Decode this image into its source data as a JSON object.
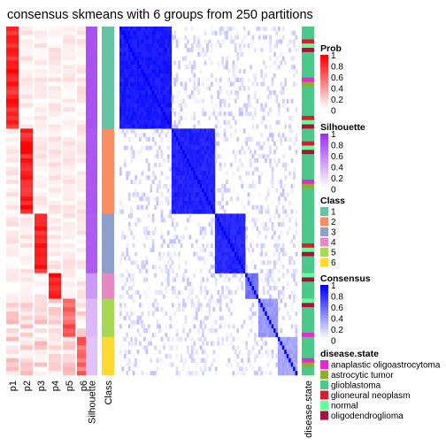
{
  "title": "consensus skmeans with 6 groups from 250 partitions",
  "chart_data": {
    "type": "heatmap",
    "columns": [
      "p1",
      "p2",
      "p3",
      "p4",
      "p5",
      "p6",
      "Silhouette",
      "Class"
    ],
    "consensus_label": "",
    "side_annotation_label": "disease.state",
    "legends": {
      "prob": {
        "title": "Prob",
        "ticks": [
          "1",
          "0.8",
          "0.6",
          "0.4",
          "0.2",
          "0"
        ],
        "low": "#ffffff",
        "high": "#ff0000"
      },
      "silhouette": {
        "title": "Silhouette",
        "ticks": [
          "1",
          "0.8",
          "0.6",
          "0.4",
          "0.2",
          "0"
        ],
        "low": "#ffffff",
        "high": "#9a32f0"
      },
      "class": {
        "title": "Class",
        "items": [
          {
            "label": "1",
            "color": "#66C2A5"
          },
          {
            "label": "2",
            "color": "#FC8D62"
          },
          {
            "label": "3",
            "color": "#8DA0CB"
          },
          {
            "label": "4",
            "color": "#E78AC3"
          },
          {
            "label": "5",
            "color": "#A6D854"
          },
          {
            "label": "6",
            "color": "#FFD92F"
          }
        ]
      },
      "consensus": {
        "title": "Consensus",
        "ticks": [
          "1",
          "0.8",
          "0.6",
          "0.4",
          "0.2",
          "0"
        ],
        "low": "#ffffff",
        "high": "#0000ff"
      },
      "disease": {
        "title": "disease.state",
        "items": [
          {
            "label": "anaplastic oligoastrocytoma",
            "color": "#E32BCF"
          },
          {
            "label": "astrocytic tumor",
            "color": "#8DAD2B"
          },
          {
            "label": "glioblastoma",
            "color": "#4BC88A"
          },
          {
            "label": "glioneural neoplasm",
            "color": "#D61F2E"
          },
          {
            "label": "normal",
            "color": "#64FF99"
          },
          {
            "label": "oligodendroglioma",
            "color": "#A3133A"
          }
        ]
      }
    },
    "groups": [
      {
        "class": 1,
        "n": 24,
        "silhouette": 0.85
      },
      {
        "class": 2,
        "n": 20,
        "silhouette": 0.82
      },
      {
        "class": 3,
        "n": 14,
        "silhouette": 0.8
      },
      {
        "class": 4,
        "n": 6,
        "silhouette": 0.5
      },
      {
        "class": 5,
        "n": 9,
        "silhouette": 0.35
      },
      {
        "class": 6,
        "n": 9,
        "silhouette": 0.3
      }
    ]
  }
}
